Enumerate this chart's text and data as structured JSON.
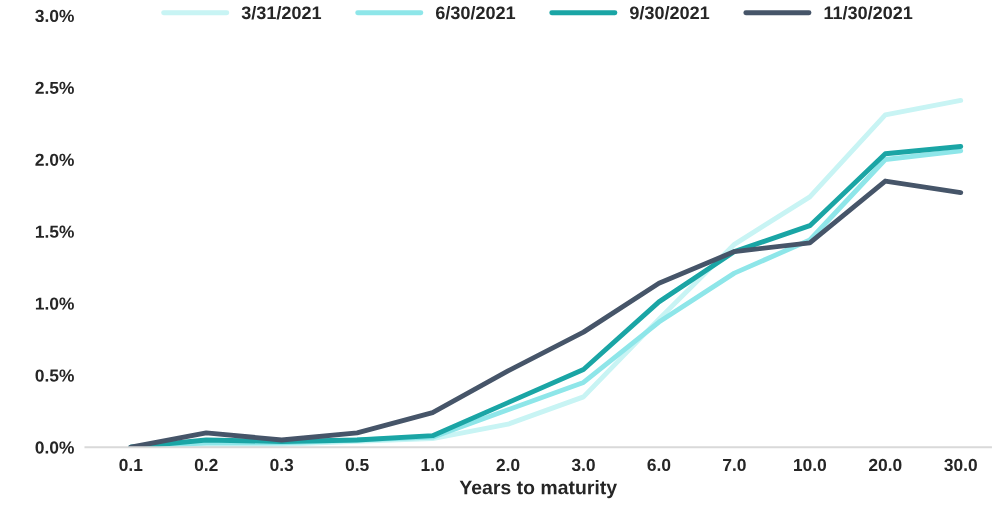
{
  "chart_data": {
    "type": "line",
    "xlabel": "Years to maturity",
    "categories": [
      "0.1",
      "0.2",
      "0.3",
      "0.5",
      "1.0",
      "2.0",
      "3.0",
      "6.0",
      "7.0",
      "10.0",
      "20.0",
      "30.0"
    ],
    "series": [
      {
        "name": "3/31/2021",
        "color": "#c8f4f4",
        "values": [
          0,
          0.01,
          0.02,
          0.04,
          0.06,
          0.16,
          0.35,
          0.89,
          1.41,
          1.74,
          2.31,
          2.41
        ]
      },
      {
        "name": "6/30/2021",
        "color": "#8ee6e9",
        "values": [
          0,
          0.03,
          0.03,
          0.05,
          0.07,
          0.26,
          0.45,
          0.87,
          1.21,
          1.44,
          2.0,
          2.06
        ]
      },
      {
        "name": "9/30/2021",
        "color": "#1aa5a5",
        "values": [
          0,
          0.05,
          0.04,
          0.05,
          0.08,
          0.31,
          0.54,
          1.01,
          1.36,
          1.54,
          2.04,
          2.09
        ]
      },
      {
        "name": "11/30/2021",
        "color": "#465569",
        "values": [
          0,
          0.1,
          0.05,
          0.1,
          0.24,
          0.53,
          0.8,
          1.14,
          1.36,
          1.42,
          1.85,
          1.77
        ]
      }
    ],
    "ylim": [
      0,
      3
    ],
    "yticks": [
      {
        "value": 0,
        "label": "0.0%"
      },
      {
        "value": 0.5,
        "label": "0.5%"
      },
      {
        "value": 1,
        "label": "1.0%"
      },
      {
        "value": 1.5,
        "label": "1.5%"
      },
      {
        "value": 2,
        "label": "2.0%"
      },
      {
        "value": 2.5,
        "label": "2.5%"
      },
      {
        "value": 3,
        "label": "3.0%"
      }
    ],
    "grid": false,
    "legend": "top",
    "marker": "none",
    "line_style": "solid"
  }
}
